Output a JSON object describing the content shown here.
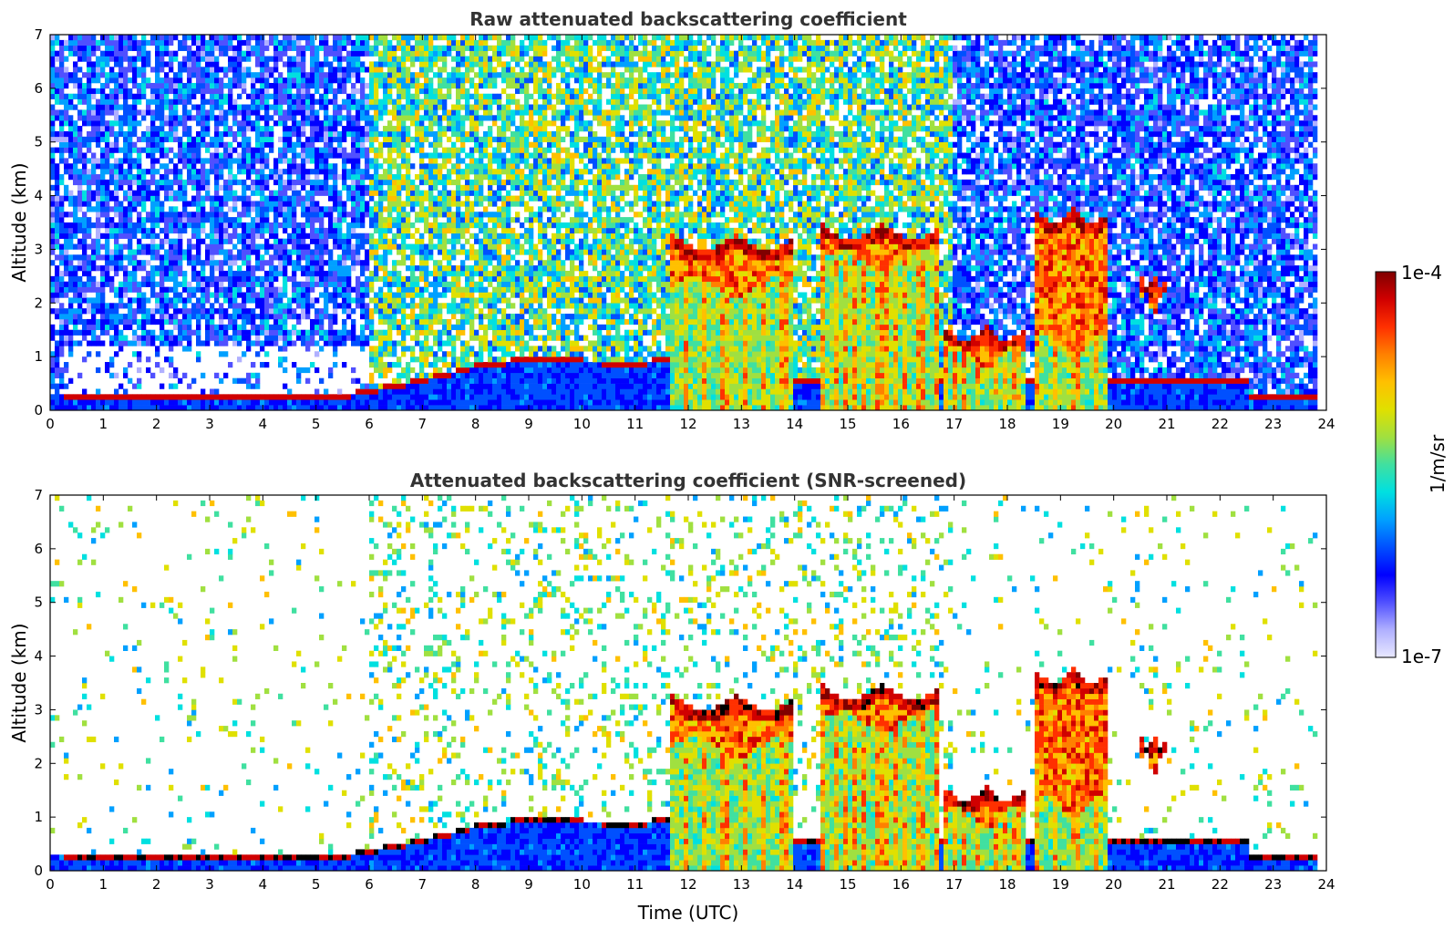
{
  "chart_data": [
    {
      "type": "heatmap",
      "title": "Raw attenuated backscattering coefficient",
      "xlabel": "",
      "ylabel": "Altitude (km)",
      "xlim": [
        0,
        24
      ],
      "ylim": [
        0,
        7
      ],
      "x_ticks": [
        "0",
        "1",
        "2",
        "3",
        "4",
        "5",
        "6",
        "7",
        "8",
        "9",
        "10",
        "11",
        "12",
        "13",
        "14",
        "15",
        "16",
        "17",
        "18",
        "19",
        "20",
        "21",
        "22",
        "23",
        "24"
      ],
      "y_ticks": [
        "0",
        "1",
        "2",
        "3",
        "4",
        "5",
        "6",
        "7"
      ],
      "screened": false,
      "boundary_layer_top_km": [
        [
          0.3,
          0.25
        ],
        [
          2,
          0.25
        ],
        [
          4,
          0.25
        ],
        [
          5.5,
          0.3
        ],
        [
          6,
          0.4
        ],
        [
          7,
          0.6
        ],
        [
          8,
          0.85
        ],
        [
          9,
          1.0
        ],
        [
          10,
          0.95
        ],
        [
          11,
          0.9
        ],
        [
          11.7,
          1.0
        ]
      ],
      "cloud_layers": [
        {
          "t_start": 11.7,
          "t_end": 14.0,
          "base_km": 2.3,
          "top_km": 3.3,
          "fallstreaks": true
        },
        {
          "t_start": 14.5,
          "t_end": 16.7,
          "base_km": 2.8,
          "top_km": 3.5,
          "fallstreaks": true
        },
        {
          "t_start": 16.8,
          "t_end": 18.3,
          "base_km": 1.0,
          "top_km": 1.6,
          "fallstreaks": true
        },
        {
          "t_start": 18.5,
          "t_end": 19.9,
          "base_km": 1.2,
          "top_km": 3.8,
          "fallstreaks": true
        },
        {
          "t_start": 20.5,
          "t_end": 21.0,
          "base_km": 2.0,
          "top_km": 2.6,
          "fallstreaks": false
        }
      ]
    },
    {
      "type": "heatmap",
      "title": "Attenuated backscattering coefficient (SNR-screened)",
      "xlabel": "Time (UTC)",
      "ylabel": "Altitude (km)",
      "xlim": [
        0,
        24
      ],
      "ylim": [
        0,
        7
      ],
      "x_ticks": [
        "0",
        "1",
        "2",
        "3",
        "4",
        "5",
        "6",
        "7",
        "8",
        "9",
        "10",
        "11",
        "12",
        "13",
        "14",
        "15",
        "16",
        "17",
        "18",
        "19",
        "20",
        "21",
        "22",
        "23",
        "24"
      ],
      "y_ticks": [
        "0",
        "1",
        "2",
        "3",
        "4",
        "5",
        "6",
        "7"
      ],
      "screened": true,
      "boundary_layer_top_km": [
        [
          0.3,
          0.25
        ],
        [
          2,
          0.25
        ],
        [
          4,
          0.25
        ],
        [
          5.5,
          0.3
        ],
        [
          6,
          0.4
        ],
        [
          7,
          0.6
        ],
        [
          8,
          0.85
        ],
        [
          9,
          1.0
        ],
        [
          10,
          0.95
        ],
        [
          11,
          0.9
        ],
        [
          11.7,
          1.0
        ]
      ],
      "cloud_layers": [
        {
          "t_start": 11.7,
          "t_end": 14.0,
          "base_km": 2.3,
          "top_km": 3.3,
          "fallstreaks": true
        },
        {
          "t_start": 14.5,
          "t_end": 16.7,
          "base_km": 2.8,
          "top_km": 3.5,
          "fallstreaks": true
        },
        {
          "t_start": 16.8,
          "t_end": 18.3,
          "base_km": 1.0,
          "top_km": 1.6,
          "fallstreaks": true
        },
        {
          "t_start": 18.5,
          "t_end": 19.9,
          "base_km": 1.2,
          "top_km": 3.8,
          "fallstreaks": true
        },
        {
          "t_start": 20.5,
          "t_end": 21.0,
          "base_km": 2.0,
          "top_km": 2.6,
          "fallstreaks": false
        }
      ]
    }
  ],
  "colorbar": {
    "min_label": "1e-7",
    "max_label": "1e-4",
    "unit_label": "1/m/sr",
    "scale": "log",
    "colors": [
      "#e8e8ff",
      "#b0b0ff",
      "#5050ff",
      "#0000ff",
      "#0050ff",
      "#00a0ff",
      "#00e0e0",
      "#40e0a0",
      "#a0e040",
      "#e0e000",
      "#ffc000",
      "#ff8000",
      "#ff3000",
      "#d00000",
      "#800000"
    ]
  }
}
